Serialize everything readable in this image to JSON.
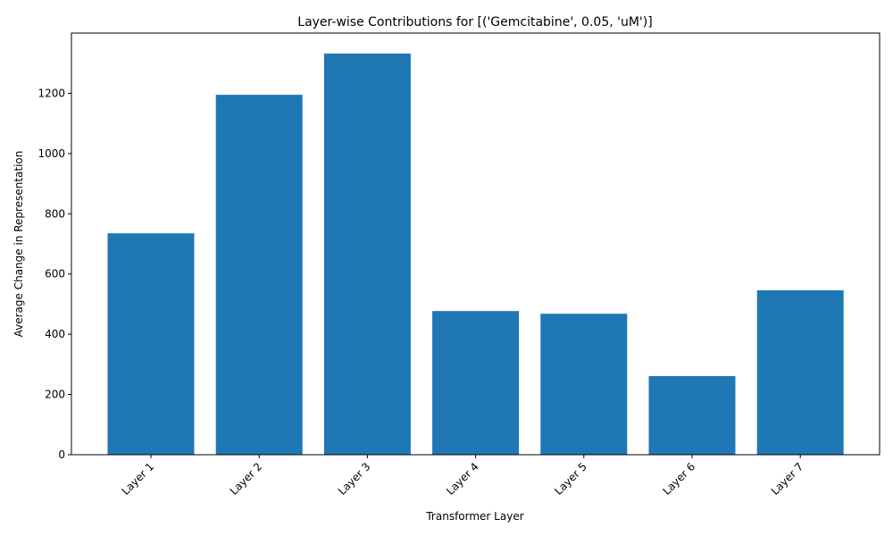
{
  "chart_data": {
    "type": "bar",
    "title": "Layer-wise Contributions for [('Gemcitabine', 0.05, 'uM')]",
    "xlabel": "Transformer Layer",
    "ylabel": "Average Change in Representation",
    "categories": [
      "Layer 1",
      "Layer 2",
      "Layer 3",
      "Layer 4",
      "Layer 5",
      "Layer 6",
      "Layer 7"
    ],
    "values": [
      735,
      1195,
      1332,
      477,
      468,
      261,
      546
    ],
    "ylim": [
      0,
      1400
    ],
    "yticks": [
      0,
      200,
      400,
      600,
      800,
      1000,
      1200
    ],
    "bar_color": "#1f77b4",
    "grid": false,
    "legend": "none"
  }
}
